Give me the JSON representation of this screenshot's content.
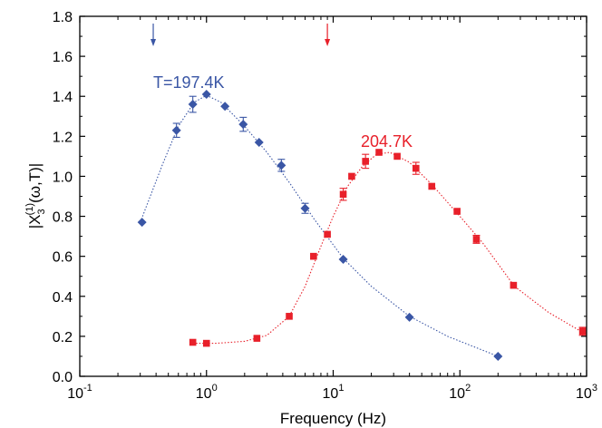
{
  "chart_data": {
    "type": "scatter",
    "xscale": "log",
    "xlabel": "Frequency (Hz)",
    "ylabel": "|X3(1)(ω,T)|",
    "ylabel_parts": {
      "prefix": "|X",
      "sub": "3",
      "sup": "(1)",
      "suffix": "(ω,T)|"
    },
    "xlim": [
      0.1,
      1000
    ],
    "ylim": [
      0.0,
      1.8
    ],
    "x_ticks": [
      {
        "base": "10",
        "exp": "-1",
        "value": 0.1
      },
      {
        "base": "10",
        "exp": "0",
        "value": 1
      },
      {
        "base": "10",
        "exp": "1",
        "value": 10
      },
      {
        "base": "10",
        "exp": "2",
        "value": 100
      },
      {
        "base": "10",
        "exp": "3",
        "value": 1000
      }
    ],
    "y_ticks": [
      "0.0",
      "0.2",
      "0.4",
      "0.6",
      "0.8",
      "1.0",
      "1.2",
      "1.4",
      "1.6",
      "1.8"
    ],
    "grid": false,
    "series": [
      {
        "name": "T=197.4K",
        "color": "#3a56a5",
        "marker": "diamond",
        "points": [
          {
            "x": 0.31,
            "y": 0.77,
            "err": 0
          },
          {
            "x": 0.58,
            "y": 1.23,
            "err": 0.035
          },
          {
            "x": 0.78,
            "y": 1.36,
            "err": 0.04
          },
          {
            "x": 1.0,
            "y": 1.41,
            "err": 0
          },
          {
            "x": 1.4,
            "y": 1.35,
            "err": 0
          },
          {
            "x": 1.95,
            "y": 1.26,
            "err": 0.035
          },
          {
            "x": 2.6,
            "y": 1.17,
            "err": 0
          },
          {
            "x": 3.9,
            "y": 1.055,
            "err": 0.03
          },
          {
            "x": 6.0,
            "y": 0.84,
            "err": 0.025
          },
          {
            "x": 12.0,
            "y": 0.585,
            "err": 0
          },
          {
            "x": 40.0,
            "y": 0.295,
            "err": 0
          },
          {
            "x": 200.0,
            "y": 0.1,
            "err": 0
          }
        ],
        "fit": [
          [
            0.3,
            0.77
          ],
          [
            0.45,
            1.06
          ],
          [
            0.6,
            1.25
          ],
          [
            0.8,
            1.37
          ],
          [
            1.0,
            1.405
          ],
          [
            1.3,
            1.37
          ],
          [
            2.0,
            1.25
          ],
          [
            3.0,
            1.12
          ],
          [
            4.5,
            0.97
          ],
          [
            7.0,
            0.79
          ],
          [
            12.0,
            0.59
          ],
          [
            20.0,
            0.45
          ],
          [
            40.0,
            0.3
          ],
          [
            80.0,
            0.2
          ],
          [
            200.0,
            0.1
          ]
        ],
        "arrow_x": 0.38
      },
      {
        "name": "204.7K",
        "color": "#e8202a",
        "marker": "square",
        "points": [
          {
            "x": 0.78,
            "y": 0.17,
            "err": 0
          },
          {
            "x": 1.0,
            "y": 0.165,
            "err": 0
          },
          {
            "x": 2.5,
            "y": 0.19,
            "err": 0
          },
          {
            "x": 4.5,
            "y": 0.3,
            "err": 0
          },
          {
            "x": 7.0,
            "y": 0.6,
            "err": 0
          },
          {
            "x": 9.0,
            "y": 0.71,
            "err": 0
          },
          {
            "x": 12.0,
            "y": 0.91,
            "err": 0.03
          },
          {
            "x": 14.0,
            "y": 1.0,
            "err": 0
          },
          {
            "x": 18.0,
            "y": 1.075,
            "err": 0.035
          },
          {
            "x": 23.0,
            "y": 1.12,
            "err": 0
          },
          {
            "x": 32.0,
            "y": 1.1,
            "err": 0
          },
          {
            "x": 45.0,
            "y": 1.04,
            "err": 0.03
          },
          {
            "x": 60.0,
            "y": 0.95,
            "err": 0
          },
          {
            "x": 95.0,
            "y": 0.825,
            "err": 0
          },
          {
            "x": 135.0,
            "y": 0.685,
            "err": 0.02
          },
          {
            "x": 265.0,
            "y": 0.455,
            "err": 0
          },
          {
            "x": 930.0,
            "y": 0.225,
            "err": 0.02
          }
        ],
        "fit": [
          [
            0.78,
            0.165
          ],
          [
            1.2,
            0.165
          ],
          [
            2.0,
            0.175
          ],
          [
            3.0,
            0.205
          ],
          [
            4.5,
            0.3
          ],
          [
            6.0,
            0.45
          ],
          [
            8.0,
            0.65
          ],
          [
            10.0,
            0.8
          ],
          [
            13.0,
            0.95
          ],
          [
            17.0,
            1.05
          ],
          [
            22.0,
            1.11
          ],
          [
            28.0,
            1.12
          ],
          [
            40.0,
            1.07
          ],
          [
            60.0,
            0.96
          ],
          [
            100.0,
            0.8
          ],
          [
            150.0,
            0.67
          ],
          [
            270.0,
            0.45
          ],
          [
            500.0,
            0.32
          ],
          [
            930.0,
            0.22
          ]
        ],
        "arrow_x": 9.0
      }
    ],
    "annotations": [
      {
        "text": "T=197.4K",
        "series": 0
      },
      {
        "text": "204.7K",
        "series": 1
      }
    ]
  }
}
